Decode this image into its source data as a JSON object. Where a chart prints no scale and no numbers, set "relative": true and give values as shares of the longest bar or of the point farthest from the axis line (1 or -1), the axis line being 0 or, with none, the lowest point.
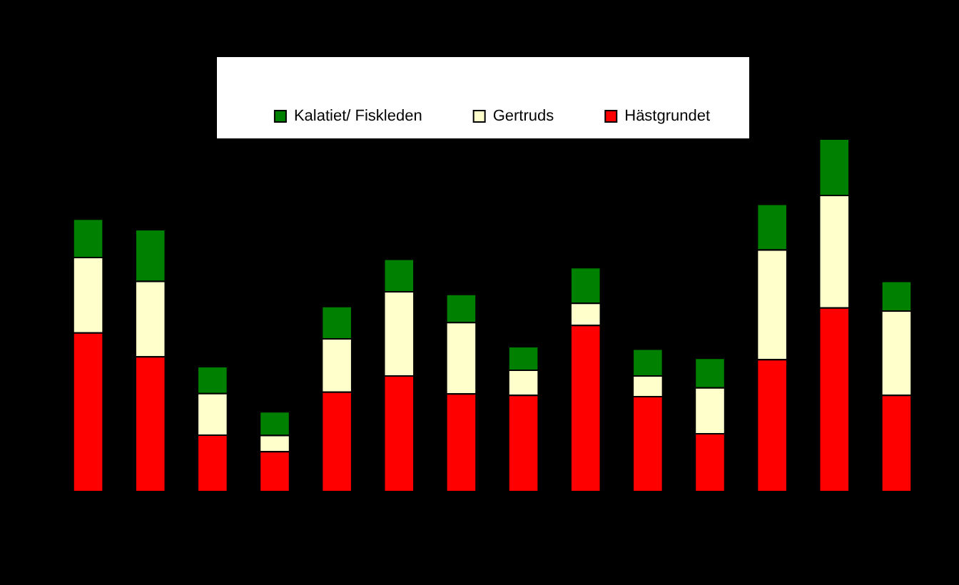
{
  "chart_data": {
    "type": "bar",
    "stacked": true,
    "relative": true,
    "legend": "top",
    "categories": [
      null,
      null,
      null,
      null,
      null,
      null,
      null,
      null,
      null,
      null,
      null,
      null,
      null,
      null
    ],
    "series": [
      {
        "name": "Hästgrundet",
        "color": "#ff0000",
        "values": [
          0.45,
          0.382,
          0.16,
          0.113,
          0.282,
          0.328,
          0.277,
          0.273,
          0.471,
          0.269,
          0.164,
          0.374,
          0.521,
          0.273
        ]
      },
      {
        "name": "Gertruds",
        "color": "#ffffcc",
        "values": [
          0.214,
          0.214,
          0.118,
          0.046,
          0.151,
          0.239,
          0.202,
          0.071,
          0.063,
          0.059,
          0.13,
          0.311,
          0.319,
          0.239
        ]
      },
      {
        "name": "Kalatiet/ Fiskleden",
        "color": "#008000",
        "values": [
          0.109,
          0.147,
          0.076,
          0.067,
          0.092,
          0.092,
          0.08,
          0.067,
          0.101,
          0.076,
          0.084,
          0.13,
          0.16,
          0.084
        ]
      }
    ]
  }
}
